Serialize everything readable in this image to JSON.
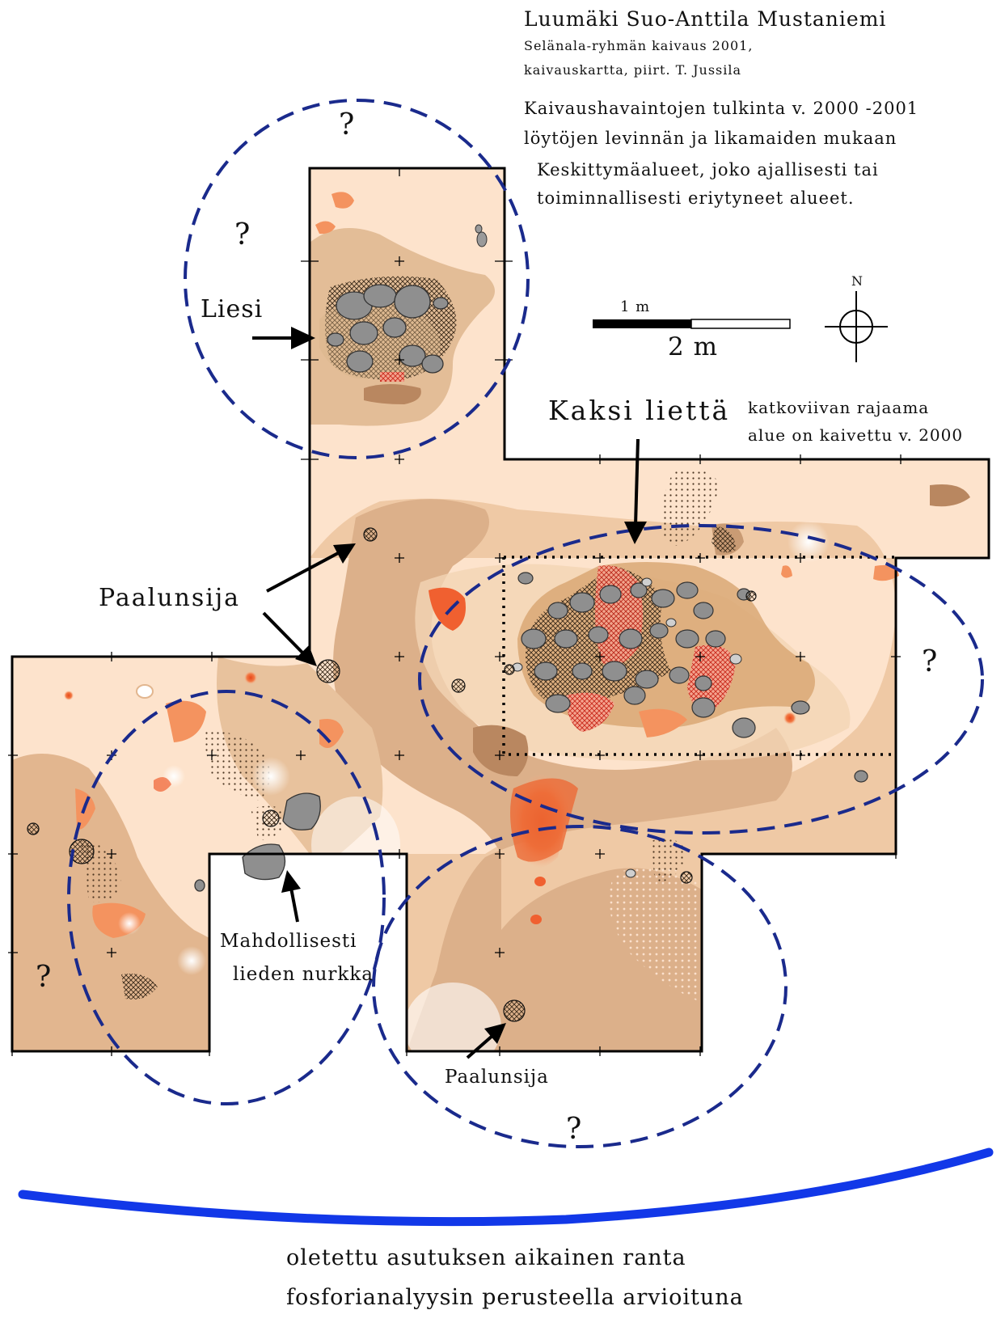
{
  "title": "Luumäki Suo-Anttila Mustaniemi",
  "subtitle_line1": "Selänala-ryhmän kaivaus 2001,",
  "subtitle_line2": "kaivauskartta, piirt. T. Jussila",
  "interpretation": [
    "Kaivaushavaintojen tulkinta v. 2000 -2001",
    "löytöjen levinnän ja likamaiden mukaan",
    "Keskittymäalueet, joko ajallisesti tai",
    "toiminnallisesti eriytyneet alueet."
  ],
  "labels": {
    "liesi": "Liesi",
    "kaksi_lietta": "Kaksi liettä",
    "dashed_note_line1": "katkoviivan rajaama",
    "dashed_note_line2": "alue on kaivettu v. 2000",
    "paalunsija_main": "Paalunsija",
    "paalunsija_south": "Paalunsija",
    "corner_line1": "Mahdollisesti",
    "corner_line2": "lieden nurkka",
    "unknown_mark": "?"
  },
  "scale_bar": {
    "small_label": "1 m",
    "main_label": "2 m"
  },
  "north_arrow": {
    "label": "N"
  },
  "shoreline": {
    "line1": "oletettu asutuksen aikainen ranta",
    "line2": "fosforianalyysin perusteella arvioituna"
  },
  "colors": {
    "soil_light": "#fde3cc",
    "soil_mid": "#efc7a2",
    "soil_dark": "#dcae85",
    "soil_brown": "#b98760",
    "red_orange": "#f0602a",
    "stone": "#8e8e8e",
    "zone_outline": "#1a2a8c",
    "shoreline": "#1238e8",
    "border": "#000000"
  }
}
